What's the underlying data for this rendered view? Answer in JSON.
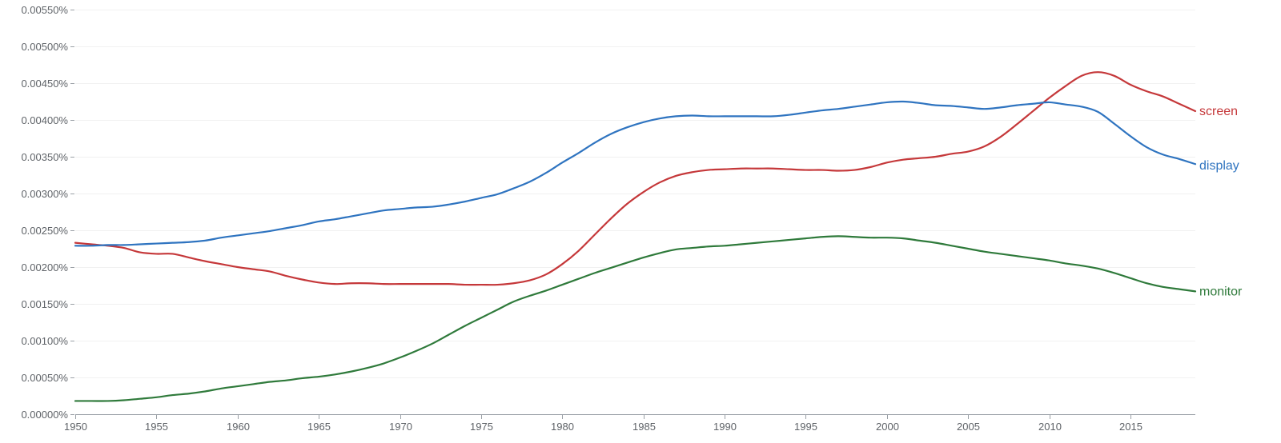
{
  "chart_data": {
    "type": "line",
    "title": "",
    "xlabel": "",
    "ylabel": "",
    "xlim": [
      1950,
      2019
    ],
    "ylim": [
      0,
      0.0055
    ],
    "grid": true,
    "legend": "inline-right",
    "x_ticks": [
      1950,
      1955,
      1960,
      1965,
      1970,
      1975,
      1980,
      1985,
      1990,
      1995,
      2000,
      2005,
      2010,
      2015
    ],
    "x_tick_labels": [
      "1950",
      "1955",
      "1960",
      "1965",
      "1970",
      "1975",
      "1980",
      "1985",
      "1990",
      "1995",
      "2000",
      "2005",
      "2010",
      "2015"
    ],
    "y_ticks": [
      0,
      0.0005,
      0.001,
      0.0015,
      0.002,
      0.0025,
      0.003,
      0.0035,
      0.004,
      0.0045,
      0.005,
      0.0055
    ],
    "y_tick_labels": [
      "0.00000%",
      "0.00050%",
      "0.00100%",
      "0.00150%",
      "0.00200%",
      "0.00250%",
      "0.00300%",
      "0.00350%",
      "0.00400%",
      "0.00450%",
      "0.00500%",
      "0.00550%"
    ],
    "x": [
      1950,
      1951,
      1952,
      1953,
      1954,
      1955,
      1956,
      1957,
      1958,
      1959,
      1960,
      1961,
      1962,
      1963,
      1964,
      1965,
      1966,
      1967,
      1968,
      1969,
      1970,
      1971,
      1972,
      1973,
      1974,
      1975,
      1976,
      1977,
      1978,
      1979,
      1980,
      1981,
      1982,
      1983,
      1984,
      1985,
      1986,
      1987,
      1988,
      1989,
      1990,
      1991,
      1992,
      1993,
      1994,
      1995,
      1996,
      1997,
      1998,
      1999,
      2000,
      2001,
      2002,
      2003,
      2004,
      2005,
      2006,
      2007,
      2008,
      2009,
      2010,
      2011,
      2012,
      2013,
      2014,
      2015,
      2016,
      2017,
      2018,
      2019
    ],
    "series": [
      {
        "name": "screen",
        "color": "#c5383a",
        "values": [
          0.00233,
          0.00231,
          0.00229,
          0.00226,
          0.0022,
          0.00218,
          0.00218,
          0.00213,
          0.00208,
          0.00204,
          0.002,
          0.00197,
          0.00194,
          0.00188,
          0.00183,
          0.00179,
          0.00177,
          0.00178,
          0.00178,
          0.00177,
          0.00177,
          0.00177,
          0.00177,
          0.00177,
          0.00176,
          0.00176,
          0.00176,
          0.00178,
          0.00182,
          0.0019,
          0.00204,
          0.00222,
          0.00244,
          0.00266,
          0.00286,
          0.00302,
          0.00315,
          0.00324,
          0.00329,
          0.00332,
          0.00333,
          0.00334,
          0.00334,
          0.00334,
          0.00333,
          0.00332,
          0.00332,
          0.00331,
          0.00332,
          0.00336,
          0.00342,
          0.00346,
          0.00348,
          0.0035,
          0.00354,
          0.00357,
          0.00364,
          0.00377,
          0.00394,
          0.00412,
          0.0043,
          0.00446,
          0.0046,
          0.00465,
          0.0046,
          0.00448,
          0.00439,
          0.00432,
          0.00422,
          0.00412
        ]
      },
      {
        "name": "display",
        "color": "#2f74c0",
        "values": [
          0.00229,
          0.00229,
          0.0023,
          0.0023,
          0.00231,
          0.00232,
          0.00233,
          0.00234,
          0.00236,
          0.0024,
          0.00243,
          0.00246,
          0.00249,
          0.00253,
          0.00257,
          0.00262,
          0.00265,
          0.00269,
          0.00273,
          0.00277,
          0.00279,
          0.00281,
          0.00282,
          0.00285,
          0.00289,
          0.00294,
          0.00299,
          0.00307,
          0.00316,
          0.00328,
          0.00342,
          0.00355,
          0.00369,
          0.00381,
          0.0039,
          0.00397,
          0.00402,
          0.00405,
          0.00406,
          0.00405,
          0.00405,
          0.00405,
          0.00405,
          0.00405,
          0.00407,
          0.0041,
          0.00413,
          0.00415,
          0.00418,
          0.00421,
          0.00424,
          0.00425,
          0.00423,
          0.0042,
          0.00419,
          0.00417,
          0.00415,
          0.00417,
          0.0042,
          0.00422,
          0.00424,
          0.00421,
          0.00418,
          0.00411,
          0.00395,
          0.00378,
          0.00363,
          0.00353,
          0.00347,
          0.0034
        ]
      },
      {
        "name": "monitor",
        "color": "#2f7a3b",
        "values": [
          0.00018,
          0.00018,
          0.00018,
          0.00019,
          0.00021,
          0.00023,
          0.00026,
          0.00028,
          0.00031,
          0.00035,
          0.00038,
          0.00041,
          0.00044,
          0.00046,
          0.00049,
          0.00051,
          0.00054,
          0.00058,
          0.00063,
          0.00069,
          0.00077,
          0.00086,
          0.00096,
          0.00108,
          0.0012,
          0.00131,
          0.00142,
          0.00153,
          0.00161,
          0.00168,
          0.00176,
          0.00184,
          0.00192,
          0.00199,
          0.00206,
          0.00213,
          0.00219,
          0.00224,
          0.00226,
          0.00228,
          0.00229,
          0.00231,
          0.00233,
          0.00235,
          0.00237,
          0.00239,
          0.00241,
          0.00242,
          0.00241,
          0.0024,
          0.0024,
          0.00239,
          0.00236,
          0.00233,
          0.00229,
          0.00225,
          0.00221,
          0.00218,
          0.00215,
          0.00212,
          0.00209,
          0.00205,
          0.00202,
          0.00198,
          0.00192,
          0.00185,
          0.00178,
          0.00173,
          0.0017,
          0.00167
        ]
      }
    ]
  }
}
